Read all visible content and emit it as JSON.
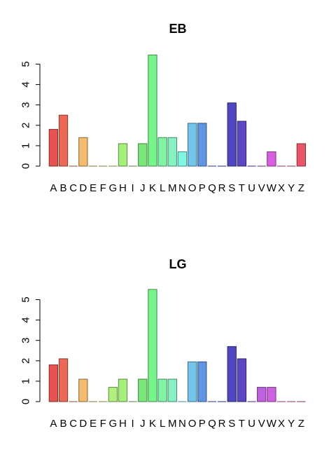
{
  "chart_data": [
    {
      "type": "bar",
      "title": "EB",
      "categories": [
        "A",
        "B",
        "C",
        "D",
        "E",
        "F",
        "G",
        "H",
        "I",
        "J",
        "K",
        "L",
        "M",
        "N",
        "O",
        "P",
        "Q",
        "R",
        "S",
        "T",
        "U",
        "V",
        "W",
        "X",
        "Y",
        "Z"
      ],
      "values": [
        1.8,
        2.5,
        0,
        1.4,
        0,
        0,
        0,
        1.1,
        0,
        1.1,
        5.45,
        1.4,
        1.4,
        0.7,
        2.1,
        2.1,
        0,
        0,
        3.1,
        2.2,
        0,
        0,
        0.7,
        0,
        0,
        1.1
      ],
      "yticks": [
        0,
        1,
        2,
        3,
        4,
        5
      ],
      "ylim": [
        0,
        5.45
      ],
      "grid": false,
      "colors": [
        "#e8524f",
        "#ec6a55",
        "#e98a57",
        "#f4bc6c",
        "#efcf6a",
        "#e8df66",
        "#d7f07b",
        "#a4f07a",
        "#8be679",
        "#7ae879",
        "#76f589",
        "#80f5a6",
        "#84f3c1",
        "#7ef7e3",
        "#72c5ec",
        "#5f95e1",
        "#4a63d9",
        "#3d4fcc",
        "#4d48c2",
        "#5c46c4",
        "#7c45c9",
        "#a758d8",
        "#da5ee3",
        "#e25fc6",
        "#e55ea0",
        "#ea5668"
      ]
    },
    {
      "type": "bar",
      "title": "LG",
      "categories": [
        "A",
        "B",
        "C",
        "D",
        "E",
        "F",
        "G",
        "H",
        "I",
        "J",
        "K",
        "L",
        "M",
        "N",
        "O",
        "P",
        "Q",
        "R",
        "S",
        "T",
        "U",
        "V",
        "W",
        "X",
        "Y",
        "Z"
      ],
      "values": [
        1.8,
        2.1,
        0,
        1.1,
        0,
        0,
        0.7,
        1.1,
        0,
        1.1,
        5.5,
        1.1,
        1.1,
        0,
        1.95,
        1.95,
        0,
        0,
        2.7,
        2.1,
        0,
        0.7,
        0.7,
        0,
        0,
        0
      ],
      "yticks": [
        0,
        1,
        2,
        3,
        4,
        5
      ],
      "ylim": [
        0,
        5.5
      ],
      "grid": false,
      "colors": [
        "#e8524f",
        "#ec6a55",
        "#e98a57",
        "#f4bc6c",
        "#efcf6a",
        "#e8df66",
        "#b0f07b",
        "#a4f07a",
        "#8be679",
        "#7ae879",
        "#76f589",
        "#80f5a6",
        "#84f3c1",
        "#7ef7e3",
        "#72c5ec",
        "#5f95e1",
        "#4a63d9",
        "#3d4fcc",
        "#4d48c2",
        "#5c46c4",
        "#7c45c9",
        "#c05fe0",
        "#d060e3",
        "#e25fc6",
        "#e55ea0",
        "#ea5668"
      ]
    }
  ]
}
